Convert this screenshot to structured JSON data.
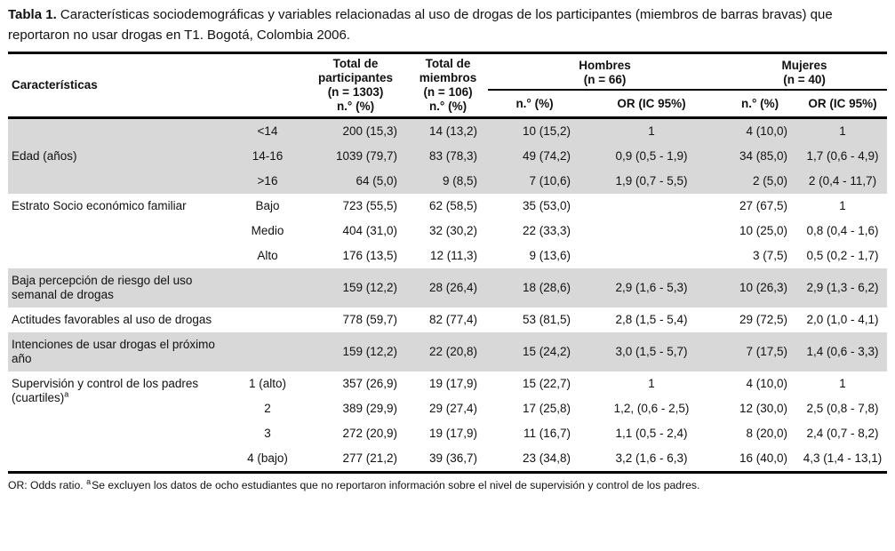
{
  "title": {
    "bold": "Tabla 1.",
    "rest": " Características sociodemográficas y variables relacionadas al uso de drogas de los participantes (miembros de barras bravas) que reportaron no usar drogas en T1. Bogotá, Colombia 2006."
  },
  "table": {
    "header": {
      "caracteristicas": "Características",
      "total_participantes": "Total de\nparticipantes\n(n = 1303)\nn.° (%)",
      "total_miembros": "Total de\nmiembros\n(n = 106)\nn.° (%)",
      "hombres": "Hombres\n(n = 66)",
      "mujeres": "Mujeres\n(n = 40)",
      "subheaders": [
        "n.° (%)",
        "OR (IC 95%)",
        "n.° (%)",
        "OR (IC 95%)"
      ]
    },
    "sections": [
      {
        "label": "Edad (años)",
        "label_align": "middle",
        "shaded": true,
        "rows": [
          {
            "sub": "<14",
            "total": "200 (15,3)",
            "miembros": "14 (13,2)",
            "h_n": "10 (15,2)",
            "h_or": "1",
            "m_n": "4 (10,0)",
            "m_or": "1"
          },
          {
            "sub": "14-16",
            "total": "1039 (79,7)",
            "miembros": "83 (78,3)",
            "h_n": "49 (74,2)",
            "h_or": "0,9 (0,5 - 1,9)",
            "m_n": "34 (85,0)",
            "m_or": "1,7 (0,6 - 4,9)"
          },
          {
            "sub": ">16",
            "total": "64 (5,0)",
            "miembros": "9 (8,5)",
            "h_n": "7 (10,6)",
            "h_or": "1,9 (0,7 - 5,5)",
            "m_n": "2 (5,0)",
            "m_or": "2 (0,4 - 11,7)"
          }
        ]
      },
      {
        "label": "Estrato Socio económico familiar",
        "label_align": "top",
        "shaded": false,
        "rows": [
          {
            "sub": "Bajo",
            "total": "723 (55,5)",
            "miembros": "62 (58,5)",
            "h_n": "35 (53,0)",
            "h_or": "",
            "m_n": "27 (67,5)",
            "m_or": "1"
          },
          {
            "sub": "Medio",
            "total": "404 (31,0)",
            "miembros": "32 (30,2)",
            "h_n": "22 (33,3)",
            "h_or": "",
            "m_n": "10 (25,0)",
            "m_or": "0,8 (0,4 - 1,6)"
          },
          {
            "sub": "Alto",
            "total": "176 (13,5)",
            "miembros": "12 (11,3)",
            "h_n": "9 (13,6)",
            "h_or": "",
            "m_n": "3 (7,5)",
            "m_or": "0,5 (0,2 - 1,7)"
          }
        ]
      },
      {
        "label": "Baja percepción de riesgo del uso semanal de drogas",
        "label_align": "middle",
        "shaded": true,
        "rows": [
          {
            "sub": "",
            "total": "159 (12,2)",
            "miembros": "28 (26,4)",
            "h_n": "18 (28,6)",
            "h_or": "2,9 (1,6 - 5,3)",
            "m_n": "10 (26,3)",
            "m_or": "2,9 (1,3 - 6,2)"
          }
        ]
      },
      {
        "label": "Actitudes favorables al uso de drogas",
        "label_align": "middle",
        "shaded": false,
        "rows": [
          {
            "sub": "",
            "total": "778 (59,7)",
            "miembros": "82 (77,4)",
            "h_n": "53 (81,5)",
            "h_or": "2,8 (1,5 - 5,4)",
            "m_n": "29 (72,5)",
            "m_or": "2,0 (1,0 - 4,1)"
          }
        ]
      },
      {
        "label": "Intenciones de usar drogas el próximo año",
        "label_align": "middle",
        "shaded": true,
        "rows": [
          {
            "sub": "",
            "total": "159 (12,2)",
            "miembros": "22 (20,8)",
            "h_n": "15 (24,2)",
            "h_or": "3,0 (1,5 - 5,7)",
            "m_n": "7 (17,5)",
            "m_or": "1,4 (0,6 - 3,3)"
          }
        ]
      },
      {
        "label": "Supervisión y control de los padres (cuartiles)",
        "label_sup": "a",
        "label_align": "top",
        "shaded": false,
        "rows": [
          {
            "sub": "1 (alto)",
            "total": "357 (26,9)",
            "miembros": "19 (17,9)",
            "h_n": "15 (22,7)",
            "h_or": "1",
            "m_n": "4 (10,0)",
            "m_or": "1"
          },
          {
            "sub": "2",
            "total": "389 (29,9)",
            "miembros": "29 (27,4)",
            "h_n": "17 (25,8)",
            "h_or": "1,2, (0,6 - 2,5)",
            "m_n": "12 (30,0)",
            "m_or": "2,5 (0,8 - 7,8)"
          },
          {
            "sub": "3",
            "total": "272 (20,9)",
            "miembros": "19 (17,9)",
            "h_n": "11 (16,7)",
            "h_or": "1,1 (0,5 - 2,4)",
            "m_n": "8 (20,0)",
            "m_or": "2,4 (0,7 - 8,2)"
          },
          {
            "sub": "4 (bajo)",
            "total": "277 (21,2)",
            "miembros": "39 (36,7)",
            "h_n": "23 (34,8)",
            "h_or": "3,2 (1,6 - 6,3)",
            "m_n": "16 (40,0)",
            "m_or": "4,3 (1,4 - 13,1)"
          }
        ]
      }
    ]
  },
  "footnote": {
    "or_label": "OR: Odds ratio.",
    "marker": "a",
    "text": "Se excluyen los datos de ocho estudiantes que no reportaron información sobre el nivel de supervisión y control de los padres."
  }
}
